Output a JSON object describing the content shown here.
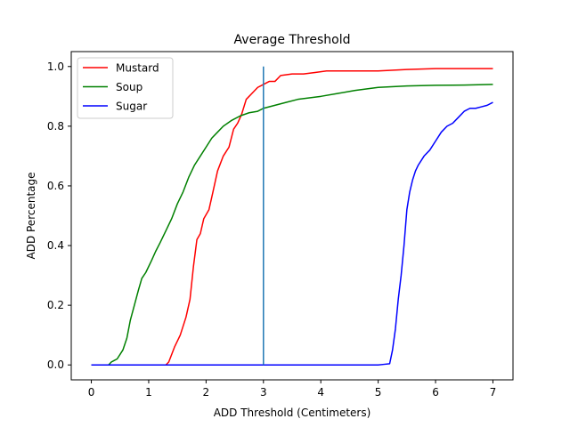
{
  "chart_data": {
    "type": "line",
    "title": "Average Threshold",
    "xlabel": "ADD Threshold (Centimeters)",
    "ylabel": "ADD Percentage",
    "xlim": [
      -0.35,
      7.35
    ],
    "ylim": [
      -0.05,
      1.05
    ],
    "xticks": [
      0,
      1,
      2,
      3,
      4,
      5,
      6,
      7
    ],
    "yticks": [
      0.0,
      0.2,
      0.4,
      0.6,
      0.8,
      1.0
    ],
    "xtick_labels": [
      "0",
      "1",
      "2",
      "3",
      "4",
      "5",
      "6",
      "7"
    ],
    "ytick_labels": [
      "0.0",
      "0.2",
      "0.4",
      "0.6",
      "0.8",
      "1.0"
    ],
    "grid": false,
    "legend_position": "top-left",
    "series": [
      {
        "name": "Mustard",
        "color": "#ff0000",
        "points": [
          [
            0,
            0
          ],
          [
            1.3,
            0
          ],
          [
            1.35,
            0.01
          ],
          [
            1.45,
            0.06
          ],
          [
            1.55,
            0.1
          ],
          [
            1.65,
            0.16
          ],
          [
            1.72,
            0.22
          ],
          [
            1.78,
            0.33
          ],
          [
            1.84,
            0.42
          ],
          [
            1.9,
            0.44
          ],
          [
            1.96,
            0.49
          ],
          [
            2.05,
            0.52
          ],
          [
            2.12,
            0.58
          ],
          [
            2.2,
            0.65
          ],
          [
            2.3,
            0.7
          ],
          [
            2.4,
            0.73
          ],
          [
            2.48,
            0.79
          ],
          [
            2.55,
            0.81
          ],
          [
            2.62,
            0.84
          ],
          [
            2.7,
            0.89
          ],
          [
            2.8,
            0.91
          ],
          [
            2.9,
            0.93
          ],
          [
            3.0,
            0.94
          ],
          [
            3.1,
            0.95
          ],
          [
            3.2,
            0.95
          ],
          [
            3.3,
            0.97
          ],
          [
            3.5,
            0.975
          ],
          [
            3.7,
            0.975
          ],
          [
            3.9,
            0.98
          ],
          [
            4.1,
            0.985
          ],
          [
            4.5,
            0.985
          ],
          [
            5.0,
            0.985
          ],
          [
            5.5,
            0.99
          ],
          [
            6.0,
            0.993
          ],
          [
            7.0,
            0.993
          ]
        ]
      },
      {
        "name": "Soup",
        "color": "#008000",
        "points": [
          [
            0,
            0
          ],
          [
            0.3,
            0
          ],
          [
            0.35,
            0.01
          ],
          [
            0.45,
            0.02
          ],
          [
            0.55,
            0.05
          ],
          [
            0.62,
            0.09
          ],
          [
            0.68,
            0.15
          ],
          [
            0.75,
            0.2
          ],
          [
            0.82,
            0.25
          ],
          [
            0.88,
            0.29
          ],
          [
            0.95,
            0.31
          ],
          [
            1.05,
            0.35
          ],
          [
            1.12,
            0.38
          ],
          [
            1.2,
            0.41
          ],
          [
            1.3,
            0.45
          ],
          [
            1.4,
            0.49
          ],
          [
            1.5,
            0.54
          ],
          [
            1.6,
            0.58
          ],
          [
            1.7,
            0.63
          ],
          [
            1.8,
            0.67
          ],
          [
            1.9,
            0.7
          ],
          [
            2.0,
            0.73
          ],
          [
            2.1,
            0.76
          ],
          [
            2.2,
            0.78
          ],
          [
            2.3,
            0.8
          ],
          [
            2.45,
            0.82
          ],
          [
            2.6,
            0.835
          ],
          [
            2.75,
            0.845
          ],
          [
            2.9,
            0.85
          ],
          [
            3.0,
            0.86
          ],
          [
            3.2,
            0.87
          ],
          [
            3.4,
            0.88
          ],
          [
            3.6,
            0.89
          ],
          [
            3.8,
            0.895
          ],
          [
            4.0,
            0.9
          ],
          [
            4.3,
            0.91
          ],
          [
            4.6,
            0.92
          ],
          [
            5.0,
            0.93
          ],
          [
            5.5,
            0.935
          ],
          [
            6.0,
            0.937
          ],
          [
            6.5,
            0.938
          ],
          [
            7.0,
            0.94
          ]
        ]
      },
      {
        "name": "Sugar",
        "color": "#0000ff",
        "points": [
          [
            0,
            0
          ],
          [
            5.0,
            0
          ],
          [
            5.1,
            0.002
          ],
          [
            5.2,
            0.004
          ],
          [
            5.25,
            0.05
          ],
          [
            5.3,
            0.12
          ],
          [
            5.35,
            0.22
          ],
          [
            5.4,
            0.3
          ],
          [
            5.45,
            0.4
          ],
          [
            5.5,
            0.52
          ],
          [
            5.55,
            0.58
          ],
          [
            5.6,
            0.62
          ],
          [
            5.65,
            0.65
          ],
          [
            5.7,
            0.67
          ],
          [
            5.8,
            0.7
          ],
          [
            5.9,
            0.72
          ],
          [
            6.0,
            0.75
          ],
          [
            6.1,
            0.78
          ],
          [
            6.2,
            0.8
          ],
          [
            6.3,
            0.81
          ],
          [
            6.4,
            0.83
          ],
          [
            6.5,
            0.85
          ],
          [
            6.6,
            0.86
          ],
          [
            6.7,
            0.86
          ],
          [
            6.8,
            0.865
          ],
          [
            6.9,
            0.87
          ],
          [
            7.0,
            0.88
          ]
        ]
      }
    ],
    "vertical_lines": [
      {
        "x": 3.0,
        "y0": 0.0,
        "y1": 1.0,
        "color": "#1f77b4"
      }
    ]
  }
}
